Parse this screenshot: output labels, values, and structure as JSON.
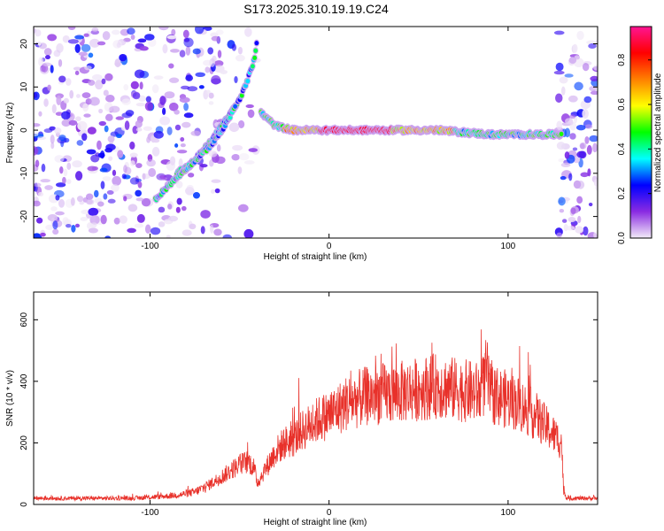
{
  "title": "S173.2025.310.19.19.C24",
  "chart_data": [
    {
      "type": "heatmap",
      "xlabel": "Height of straight line (km)",
      "ylabel": "Frequency (Hz)",
      "xlim": [
        -165,
        150
      ],
      "ylim": [
        -25,
        24
      ],
      "xticks": [
        -100,
        0,
        100
      ],
      "yticks": [
        -20,
        -10,
        0,
        10,
        20
      ],
      "colorbar": {
        "label": "Normalized spectral amplitude",
        "range": [
          0,
          0.95
        ],
        "ticks": [
          0.0,
          0.2,
          0.4,
          0.6,
          0.8
        ],
        "stops": [
          "#f3ecf8",
          "#8a2be2",
          "#0000ff",
          "#00ffff",
          "#00ff00",
          "#ffff00",
          "#ff8000",
          "#ff0000",
          "#ff1493"
        ]
      },
      "features": [
        {
          "name": "rising-track-upper",
          "x": [
            -85,
            -75,
            -65,
            -55,
            -50,
            -46,
            -42,
            -40
          ],
          "y": [
            -10,
            -7,
            -2,
            4,
            7,
            11,
            16,
            21
          ]
        },
        {
          "name": "rising-track-lower",
          "x": [
            -97,
            -90,
            -80,
            -72,
            -65,
            -58,
            -52
          ],
          "y": [
            -16,
            -13,
            -9,
            -6,
            -3,
            1,
            6
          ]
        },
        {
          "name": "flat-track",
          "x": [
            -38,
            -30,
            -20,
            0,
            30,
            60,
            90,
            110,
            130
          ],
          "y": [
            4,
            1,
            0,
            0,
            0,
            0,
            -1,
            -1,
            -1
          ]
        }
      ]
    },
    {
      "type": "line",
      "xlabel": "Height of straight line (km)",
      "ylabel": "SNR (10 * v/v)",
      "xlim": [
        -165,
        150
      ],
      "ylim": [
        0,
        690
      ],
      "xticks": [
        -100,
        0,
        100
      ],
      "yticks": [
        0,
        200,
        400,
        600
      ],
      "series": [
        {
          "name": "SNR",
          "color": "#e8312a",
          "x": [
            -165,
            -150,
            -130,
            -110,
            -95,
            -85,
            -75,
            -68,
            -60,
            -55,
            -50,
            -45,
            -42,
            -40,
            -35,
            -30,
            -25,
            -20,
            -15,
            -10,
            -5,
            0,
            5,
            10,
            15,
            20,
            25,
            30,
            35,
            40,
            45,
            50,
            55,
            60,
            65,
            70,
            75,
            80,
            85,
            88,
            90,
            95,
            100,
            105,
            110,
            115,
            120,
            125,
            130,
            131,
            133,
            140,
            150
          ],
          "values": [
            20,
            20,
            20,
            20,
            25,
            30,
            40,
            60,
            90,
            110,
            130,
            140,
            120,
            70,
            120,
            170,
            200,
            210,
            240,
            260,
            280,
            290,
            310,
            330,
            340,
            350,
            355,
            360,
            360,
            365,
            370,
            375,
            380,
            385,
            380,
            375,
            370,
            365,
            360,
            430,
            360,
            350,
            340,
            330,
            310,
            290,
            260,
            230,
            200,
            40,
            20,
            20,
            20
          ]
        }
      ]
    }
  ]
}
